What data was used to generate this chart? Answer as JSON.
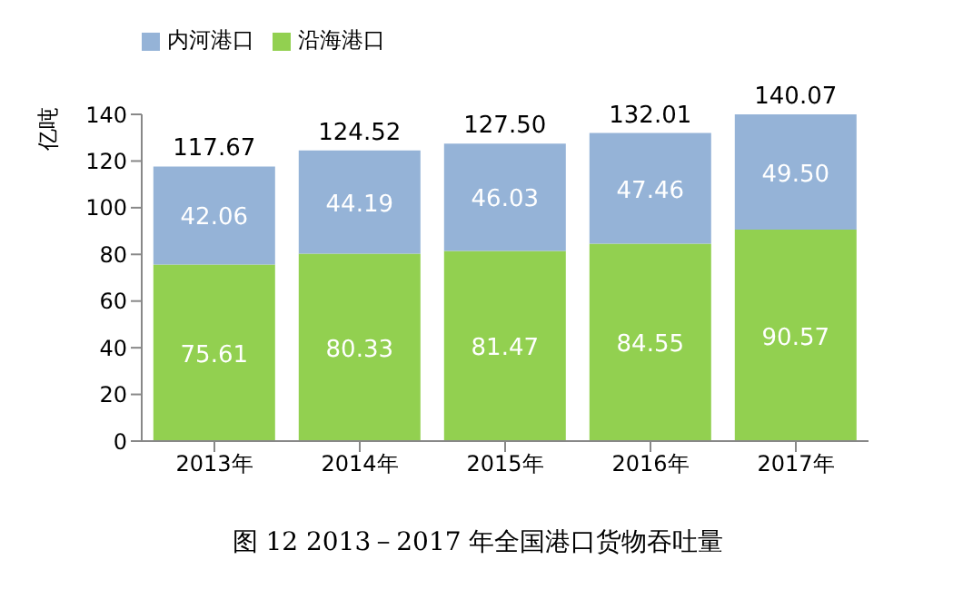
{
  "chart_data": {
    "type": "bar",
    "title": "图 12    2013－2017 年全国港口货物吞吐量",
    "ylabel": "亿吨",
    "categories": [
      "2013年",
      "2014年",
      "2015年",
      "2016年",
      "2017年"
    ],
    "stacked": true,
    "series": [
      {
        "name": "沿海港口",
        "color": "#92d050",
        "values": [
          75.61,
          80.33,
          81.47,
          84.55,
          90.57
        ]
      },
      {
        "name": "内河港口",
        "color": "#95b3d7",
        "values": [
          42.06,
          44.19,
          46.03,
          47.46,
          49.5
        ]
      }
    ],
    "value_labels": [
      [
        "75.61",
        "80.33",
        "81.47",
        "84.55",
        "90.57"
      ],
      [
        "42.06",
        "44.19",
        "46.03",
        "47.46",
        "49.50"
      ]
    ],
    "totals": [
      "117.67",
      "124.52",
      "127.50",
      "132.01",
      "140.07"
    ],
    "ylim": [
      0,
      140
    ],
    "yticks": [
      0,
      20,
      40,
      60,
      80,
      100,
      120,
      140
    ],
    "grid": false,
    "legend": "top left"
  }
}
